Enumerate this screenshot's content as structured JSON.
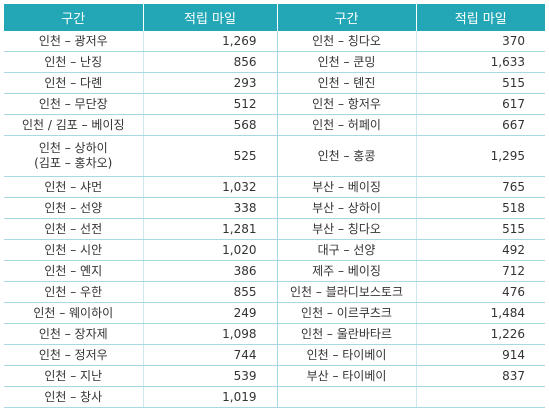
{
  "headers": [
    "구간",
    "적립 마일",
    "구간",
    "적립 마일"
  ],
  "rows": [
    {
      "l_route": "인천 – 광저우",
      "l_mile": "1,269",
      "r_route": "인천 – 칭다오",
      "r_mile": "370"
    },
    {
      "l_route": "인천 – 난징",
      "l_mile": "856",
      "r_route": "인천 – 쿤밍",
      "r_mile": "1,633"
    },
    {
      "l_route": "인천 – 다롄",
      "l_mile": "293",
      "r_route": "인천 – 톈진",
      "r_mile": "515"
    },
    {
      "l_route": "인천 – 무단장",
      "l_mile": "512",
      "r_route": "인천 – 항저우",
      "r_mile": "617"
    },
    {
      "l_route": "인천 / 김포 – 베이징",
      "l_mile": "568",
      "r_route": "인천 – 허페이",
      "r_mile": "667"
    },
    {
      "l_route": "인천 – 상하이\n(김포 – 홍차오)",
      "l_mile": "525",
      "r_route": "인천 – 홍콩",
      "r_mile": "1,295"
    },
    {
      "l_route": "인천 – 샤먼",
      "l_mile": "1,032",
      "r_route": "부산 – 베이징",
      "r_mile": "765"
    },
    {
      "l_route": "인천 – 선양",
      "l_mile": "338",
      "r_route": "부산 – 상하이",
      "r_mile": "518"
    },
    {
      "l_route": "인천 – 선전",
      "l_mile": "1,281",
      "r_route": "부산 – 칭다오",
      "r_mile": "515"
    },
    {
      "l_route": "인천 – 시안",
      "l_mile": "1,020",
      "r_route": "대구 – 선양",
      "r_mile": "492"
    },
    {
      "l_route": "인천 – 옌지",
      "l_mile": "386",
      "r_route": "제주 – 베이징",
      "r_mile": "712"
    },
    {
      "l_route": "인천 – 우한",
      "l_mile": "855",
      "r_route": "인천 – 블라디보스토크",
      "r_mile": "476"
    },
    {
      "l_route": "인천 – 웨이하이",
      "l_mile": "249",
      "r_route": "인천 – 이르쿠츠크",
      "r_mile": "1,484"
    },
    {
      "l_route": "인천 – 장자제",
      "l_mile": "1,098",
      "r_route": "인천 – 울란바타르",
      "r_mile": "1,226"
    },
    {
      "l_route": "인천 – 정저우",
      "l_mile": "744",
      "r_route": "인천 – 타이베이",
      "r_mile": "914"
    },
    {
      "l_route": "인천 – 지난",
      "l_mile": "539",
      "r_route": "부산 – 타이베이",
      "r_mile": "837"
    },
    {
      "l_route": "인천 – 창사",
      "l_mile": "1,019",
      "r_route": "",
      "r_mile": ""
    }
  ]
}
